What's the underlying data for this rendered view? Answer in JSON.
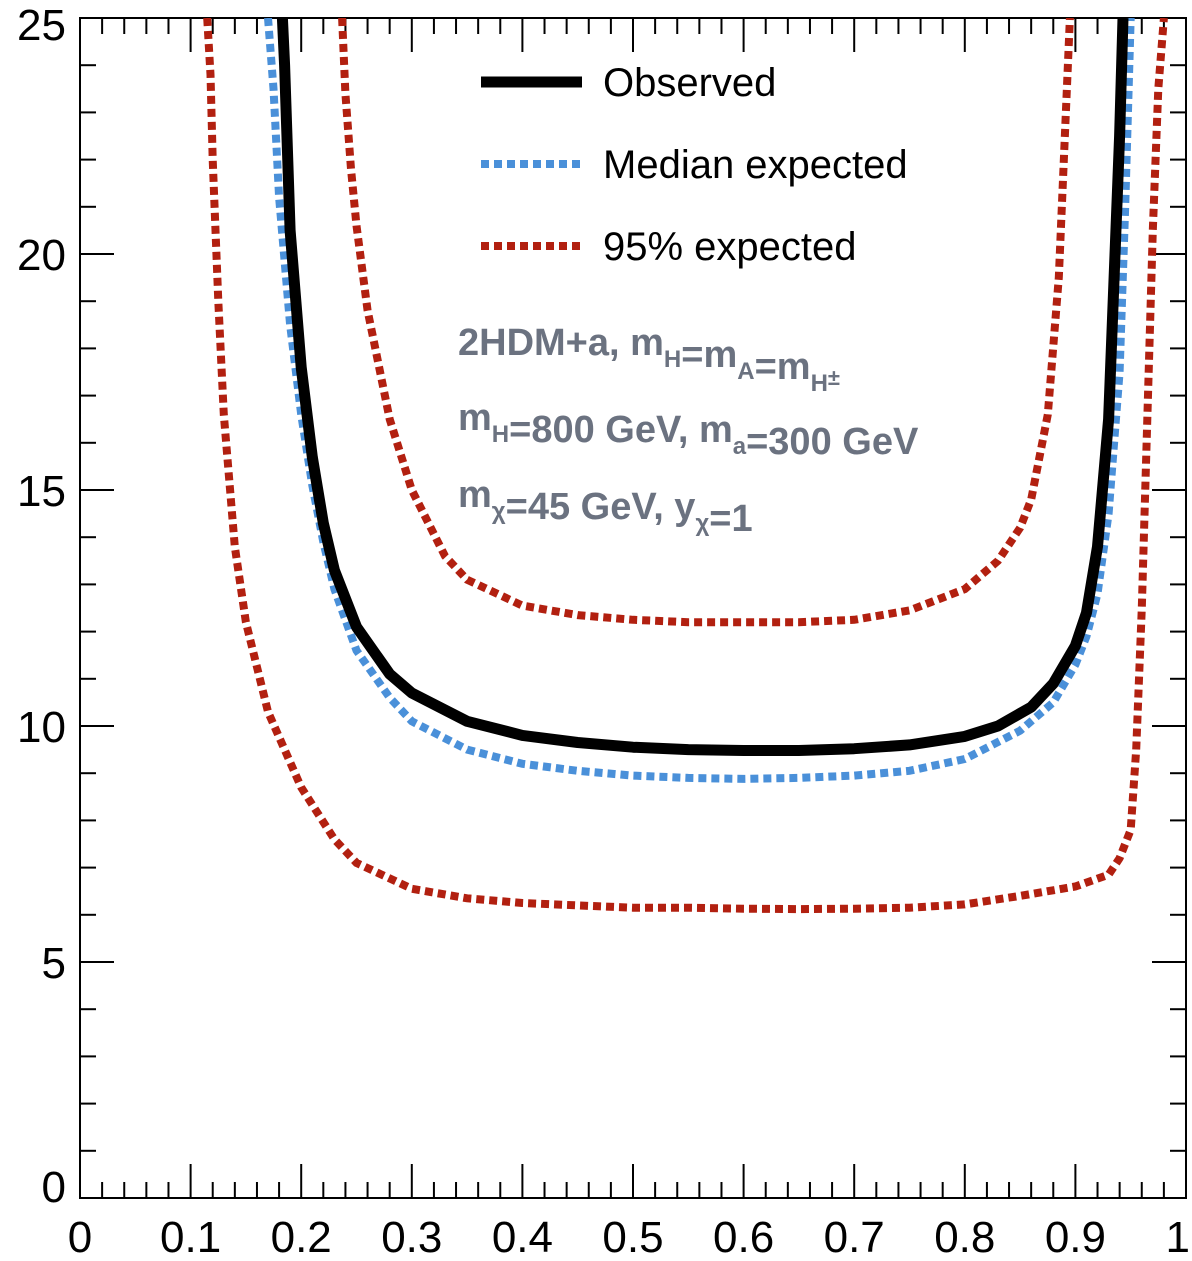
{
  "chart_data": {
    "type": "line",
    "title": "",
    "xlabel": "",
    "ylabel": "",
    "xlim": [
      0,
      1
    ],
    "ylim": [
      0,
      25
    ],
    "x_ticks": [
      0,
      0.1,
      0.2,
      0.3,
      0.4,
      0.5,
      0.6,
      0.7,
      0.8,
      0.9,
      1
    ],
    "x_tick_labels": [
      "0",
      "0.1",
      "0.2",
      "0.3",
      "0.4",
      "0.5",
      "0.6",
      "0.7",
      "0.8",
      "0.9",
      "1"
    ],
    "y_ticks": [
      0,
      5,
      10,
      15,
      20,
      25
    ],
    "y_tick_labels": [
      "0",
      "5",
      "10",
      "15",
      "20",
      "25"
    ],
    "grid": false,
    "legend_position": "top-center",
    "colors": {
      "observed": "#000000",
      "median": "#4a90d9",
      "band95": "#b22010",
      "annotation": "#6b7280"
    },
    "series": [
      {
        "name": "Observed",
        "style": "solid",
        "x": [
          0.183,
          0.185,
          0.19,
          0.2,
          0.21,
          0.22,
          0.23,
          0.25,
          0.28,
          0.3,
          0.35,
          0.4,
          0.45,
          0.5,
          0.55,
          0.6,
          0.65,
          0.7,
          0.75,
          0.8,
          0.83,
          0.86,
          0.88,
          0.9,
          0.91,
          0.92,
          0.93,
          0.935,
          0.94,
          0.943
        ],
        "y": [
          25,
          24,
          20.5,
          17.6,
          15.7,
          14.3,
          13.3,
          12.1,
          11.1,
          10.7,
          10.1,
          9.8,
          9.65,
          9.55,
          9.5,
          9.48,
          9.48,
          9.52,
          9.6,
          9.78,
          10.0,
          10.4,
          10.9,
          11.7,
          12.4,
          13.8,
          16.5,
          19.5,
          22.5,
          25
        ]
      },
      {
        "name": "Median expected",
        "style": "dotted",
        "x": [
          0.17,
          0.175,
          0.18,
          0.19,
          0.2,
          0.21,
          0.22,
          0.23,
          0.25,
          0.28,
          0.3,
          0.35,
          0.4,
          0.45,
          0.5,
          0.55,
          0.6,
          0.65,
          0.7,
          0.75,
          0.8,
          0.85,
          0.88,
          0.9,
          0.91,
          0.92,
          0.93,
          0.94,
          0.945,
          0.95
        ],
        "y": [
          25,
          23.5,
          21.2,
          18.5,
          16.6,
          15.1,
          13.9,
          12.9,
          11.6,
          10.6,
          10.1,
          9.5,
          9.2,
          9.05,
          8.95,
          8.9,
          8.88,
          8.9,
          8.95,
          9.05,
          9.3,
          9.9,
          10.5,
          11.3,
          11.9,
          12.8,
          14.5,
          17.5,
          21,
          25
        ]
      },
      {
        "name": "95% expected",
        "style": "dotted",
        "x": [
          0.237,
          0.24,
          0.245,
          0.25,
          0.26,
          0.28,
          0.3,
          0.33,
          0.35,
          0.4,
          0.45,
          0.5,
          0.55,
          0.6,
          0.65,
          0.7,
          0.75,
          0.8,
          0.83,
          0.85,
          0.86,
          0.875,
          0.885,
          0.895
        ],
        "y": [
          25,
          23.4,
          21.8,
          20.6,
          18.8,
          16.5,
          15.0,
          13.6,
          13.1,
          12.55,
          12.35,
          12.25,
          12.2,
          12.2,
          12.2,
          12.25,
          12.45,
          12.9,
          13.5,
          14.2,
          14.8,
          16.6,
          19.5,
          25
        ]
      },
      {
        "name": "95% expected",
        "style": "dotted",
        "x": [
          0.115,
          0.118,
          0.12,
          0.125,
          0.13,
          0.14,
          0.15,
          0.17,
          0.2,
          0.23,
          0.25,
          0.3,
          0.35,
          0.4,
          0.45,
          0.5,
          0.55,
          0.6,
          0.65,
          0.7,
          0.75,
          0.8,
          0.85,
          0.9,
          0.93,
          0.94,
          0.95,
          0.955,
          0.96,
          0.965,
          0.97,
          0.975,
          0.98
        ],
        "y": [
          25,
          23.8,
          22.0,
          19.0,
          16.6,
          13.8,
          12.2,
          10.3,
          8.7,
          7.6,
          7.1,
          6.55,
          6.35,
          6.25,
          6.2,
          6.15,
          6.15,
          6.13,
          6.12,
          6.13,
          6.15,
          6.22,
          6.4,
          6.6,
          6.85,
          7.2,
          7.8,
          9.5,
          12.5,
          16.5,
          20.5,
          23.5,
          25
        ]
      }
    ],
    "legend": [
      {
        "label": "Observed",
        "series": 0
      },
      {
        "label": "Median expected",
        "series": 1
      },
      {
        "label": "95% expected",
        "series": 2
      }
    ],
    "annotations": [
      {
        "parts": [
          {
            "t": "2HDM+a, m"
          },
          {
            "t": "H",
            "sub": true
          },
          {
            "t": "=m"
          },
          {
            "t": "A",
            "sub": true
          },
          {
            "t": "=m"
          },
          {
            "t": "H",
            "sub": true
          },
          {
            "t": "±",
            "sup": true
          }
        ]
      },
      {
        "parts": [
          {
            "t": "m"
          },
          {
            "t": "H",
            "sub": true
          },
          {
            "t": "=800 GeV, m"
          },
          {
            "t": "a",
            "sub": true
          },
          {
            "t": "=300 GeV"
          }
        ]
      },
      {
        "parts": [
          {
            "t": "m"
          },
          {
            "t": "χ",
            "sub": true
          },
          {
            "t": "=45 GeV, y"
          },
          {
            "t": "χ",
            "sub": true
          },
          {
            "t": "=1"
          }
        ]
      }
    ]
  }
}
